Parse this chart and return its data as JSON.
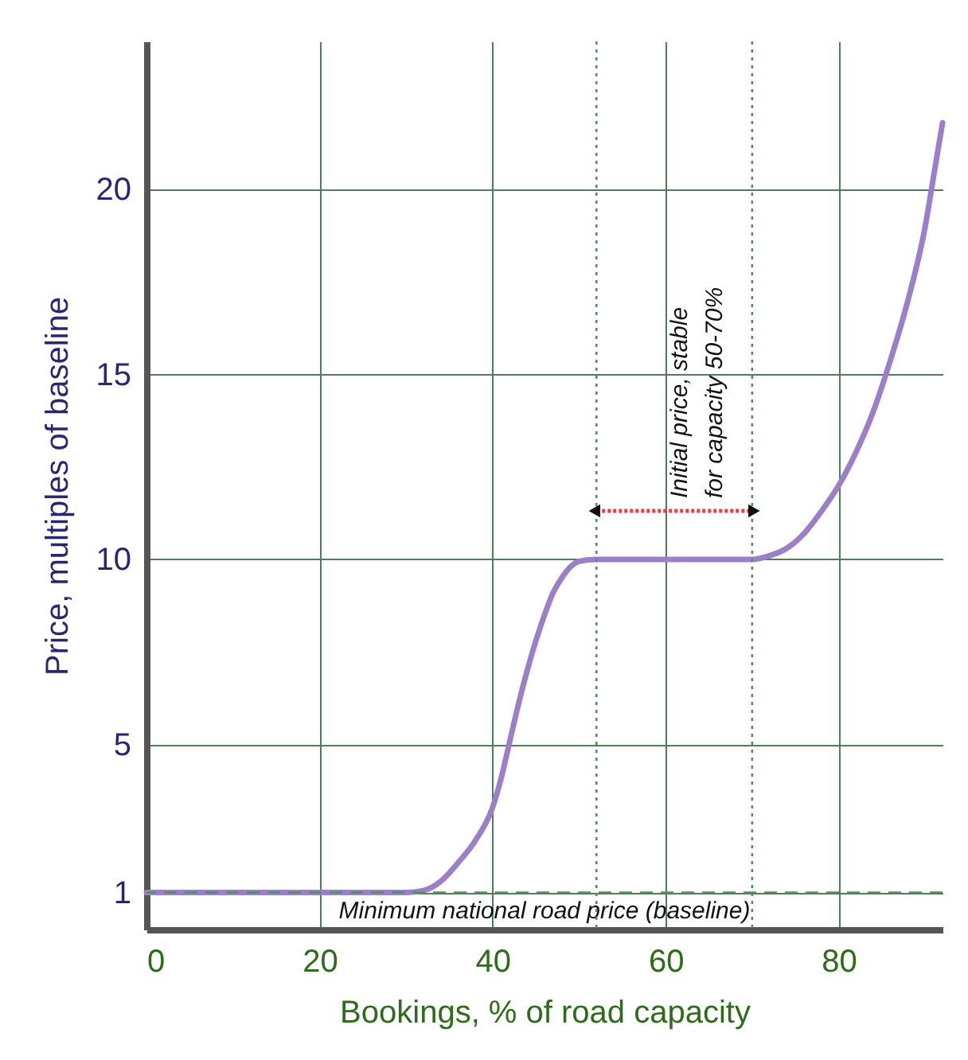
{
  "chart_data": {
    "type": "line",
    "xlabel": "Bookings, % of road capacity",
    "ylabel": "Price, multiples of baseline",
    "x": [
      0,
      10,
      20,
      30,
      32,
      34,
      36,
      38,
      40,
      41,
      42,
      43,
      44,
      45,
      46,
      47,
      48,
      49,
      50,
      52,
      60,
      70,
      72,
      74,
      76,
      78,
      80,
      82,
      84,
      86,
      88,
      90,
      91,
      92
    ],
    "series": [
      {
        "color": "#9b7fc9",
        "values": [
          1,
          1,
          1,
          1,
          1.05,
          1.3,
          1.8,
          2.4,
          3.3,
          4.1,
          5.1,
          6.1,
          7,
          7.8,
          8.5,
          9.1,
          9.5,
          9.8,
          9.95,
          10,
          10,
          10,
          10.1,
          10.3,
          10.7,
          11.3,
          12,
          12.9,
          14,
          15.4,
          17,
          19,
          20.4,
          21.8
        ]
      }
    ],
    "xlim": [
      0,
      92
    ],
    "xticks": [
      0,
      20,
      40,
      60,
      80
    ],
    "ylim": [
      0,
      24
    ],
    "yticks": [
      1,
      5,
      10,
      15,
      20
    ],
    "grid": true,
    "marker": "none",
    "line_style": "solid",
    "ref_lines": [
      {
        "axis": "y",
        "value": 1,
        "label": "Minimum national road price (baseline)",
        "color": "#5a8a64",
        "line_style": "dashed"
      },
      {
        "axis": "x",
        "value": 52,
        "label": null,
        "color": "#5a8a64",
        "line_style": "dotted"
      },
      {
        "axis": "x",
        "value": 70,
        "label": null,
        "color": "#5a8a64",
        "line_style": "dotted"
      }
    ],
    "annotations": [
      "Initial price, stable\nfor capacity 50-70%"
    ]
  }
}
